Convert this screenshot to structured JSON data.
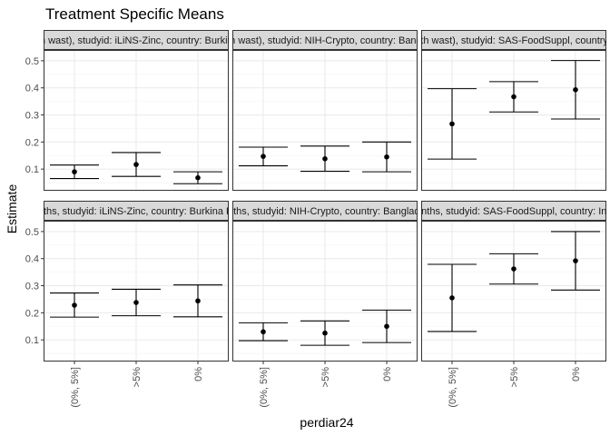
{
  "chart_data": {
    "type": "errorbar",
    "title": "Treatment Specific Means",
    "xlabel": "perdiar24",
    "ylabel": "Estimate",
    "categories": [
      "(0%, 5%]",
      ">5%",
      "0%"
    ],
    "ylim": [
      0.02,
      0.54
    ],
    "yticks": [
      0.1,
      0.2,
      0.3,
      0.4,
      0.5
    ],
    "ytick_labels": [
      "0.1",
      "0.2",
      "0.3",
      "0.4",
      "0.5"
    ],
    "grid": true,
    "facet_rows": 2,
    "facet_cols": 3,
    "colors": {
      "strip_fill": "#d9d9d9",
      "panel_border": "#333333",
      "grid": "#ebebeb",
      "marks": "#000000"
    },
    "panels": [
      {
        "strip": "(no birth wast), studyid: iLiNS-Zinc, country: Burkina Faso",
        "estimates": [
          0.09,
          0.117,
          0.068
        ],
        "lower": [
          0.065,
          0.073,
          0.046
        ],
        "upper": [
          0.115,
          0.161,
          0.09
        ]
      },
      {
        "strip": "(no birth wast), studyid: NIH-Crypto, country: Bangladesh",
        "estimates": [
          0.147,
          0.138,
          0.145
        ],
        "lower": [
          0.112,
          0.092,
          0.09
        ],
        "upper": [
          0.181,
          0.185,
          0.2
        ]
      },
      {
        "strip": "(no birth wast), studyid: SAS-FoodSuppl, country: India",
        "estimates": [
          0.267,
          0.367,
          0.393
        ],
        "lower": [
          0.137,
          0.311,
          0.285
        ],
        "upper": [
          0.397,
          0.423,
          0.501
        ]
      },
      {
        "strip": "months, studyid: iLiNS-Zinc, country: Burkina Faso",
        "estimates": [
          0.228,
          0.238,
          0.244
        ],
        "lower": [
          0.184,
          0.189,
          0.185
        ],
        "upper": [
          0.273,
          0.287,
          0.303
        ]
      },
      {
        "strip": "months, studyid: NIH-Crypto, country: Bangladesh",
        "estimates": [
          0.13,
          0.125,
          0.15
        ],
        "lower": [
          0.097,
          0.08,
          0.09
        ],
        "upper": [
          0.163,
          0.17,
          0.21
        ]
      },
      {
        "strip": "months, studyid: SAS-FoodSuppl, country: India",
        "estimates": [
          0.255,
          0.362,
          0.392
        ],
        "lower": [
          0.131,
          0.306,
          0.284
        ],
        "upper": [
          0.379,
          0.418,
          0.5
        ]
      }
    ]
  }
}
